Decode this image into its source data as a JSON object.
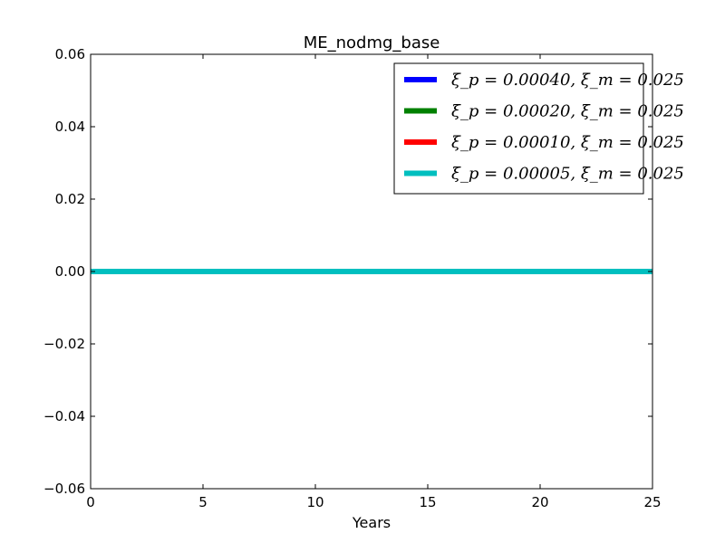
{
  "chart_data": {
    "type": "line",
    "title": "ME_nodmg_base",
    "xlabel": "Years",
    "ylabel": "",
    "xlim": [
      0,
      25
    ],
    "ylim": [
      -0.06,
      0.06
    ],
    "xticks": [
      0,
      5,
      10,
      15,
      20,
      25
    ],
    "xtick_labels": [
      "0",
      "5",
      "10",
      "15",
      "20",
      "25"
    ],
    "yticks": [
      -0.06,
      -0.04,
      -0.02,
      0.0,
      0.02,
      0.04,
      0.06
    ],
    "ytick_labels": [
      "−0.06",
      "−0.04",
      "−0.02",
      "0.00",
      "0.02",
      "0.04",
      "0.06"
    ],
    "grid": false,
    "legend_position": "top-right",
    "x": [
      0,
      25
    ],
    "series": [
      {
        "name": "ξ_p = 0.00040, ξ_m = 0.025",
        "color": "#0000ff",
        "values": [
          0,
          0
        ]
      },
      {
        "name": "ξ_p = 0.00020, ξ_m = 0.025",
        "color": "#008000",
        "values": [
          0,
          0
        ]
      },
      {
        "name": "ξ_p = 0.00010, ξ_m = 0.025",
        "color": "#ff0000",
        "values": [
          0,
          0
        ]
      },
      {
        "name": "ξ_p = 0.00005, ξ_m = 0.025",
        "color": "#00bfbf",
        "values": [
          0,
          0
        ]
      }
    ]
  }
}
